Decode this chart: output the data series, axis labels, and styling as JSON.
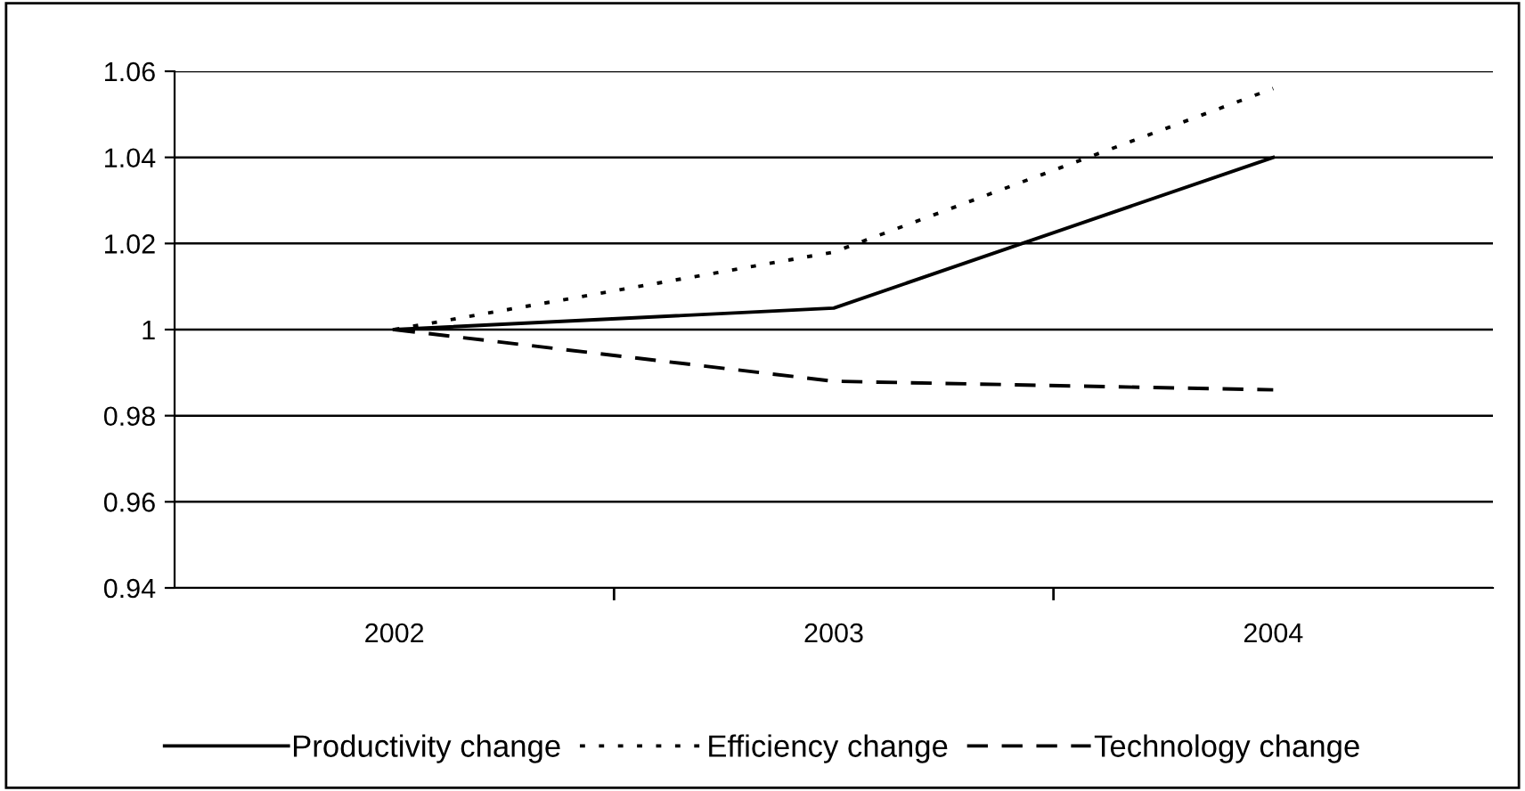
{
  "chart_data": {
    "type": "line",
    "categories": [
      "2002",
      "2003",
      "2004"
    ],
    "series": [
      {
        "name": "Productivity change",
        "color": "#000000",
        "line_style": "solid",
        "values": [
          1.0,
          1.005,
          1.04
        ]
      },
      {
        "name": "Efficiency change",
        "color": "#000000",
        "line_style": "dotted",
        "values": [
          1.0,
          1.018,
          1.056
        ]
      },
      {
        "name": "Technology change",
        "color": "#000000",
        "line_style": "dashed",
        "values": [
          1.0,
          0.988,
          0.986
        ]
      }
    ],
    "ylim": [
      0.94,
      1.06
    ],
    "yticks": [
      {
        "value": 0.94,
        "label": "0.94"
      },
      {
        "value": 0.96,
        "label": "0.96"
      },
      {
        "value": 0.98,
        "label": "0.98"
      },
      1,
      {
        "value": 1.02,
        "label": "1.02"
      },
      {
        "value": 1.04,
        "label": "1.04"
      },
      {
        "value": 1.06,
        "label": "1.06"
      }
    ],
    "grid": "y",
    "legend": "bottom",
    "marker": "none"
  }
}
